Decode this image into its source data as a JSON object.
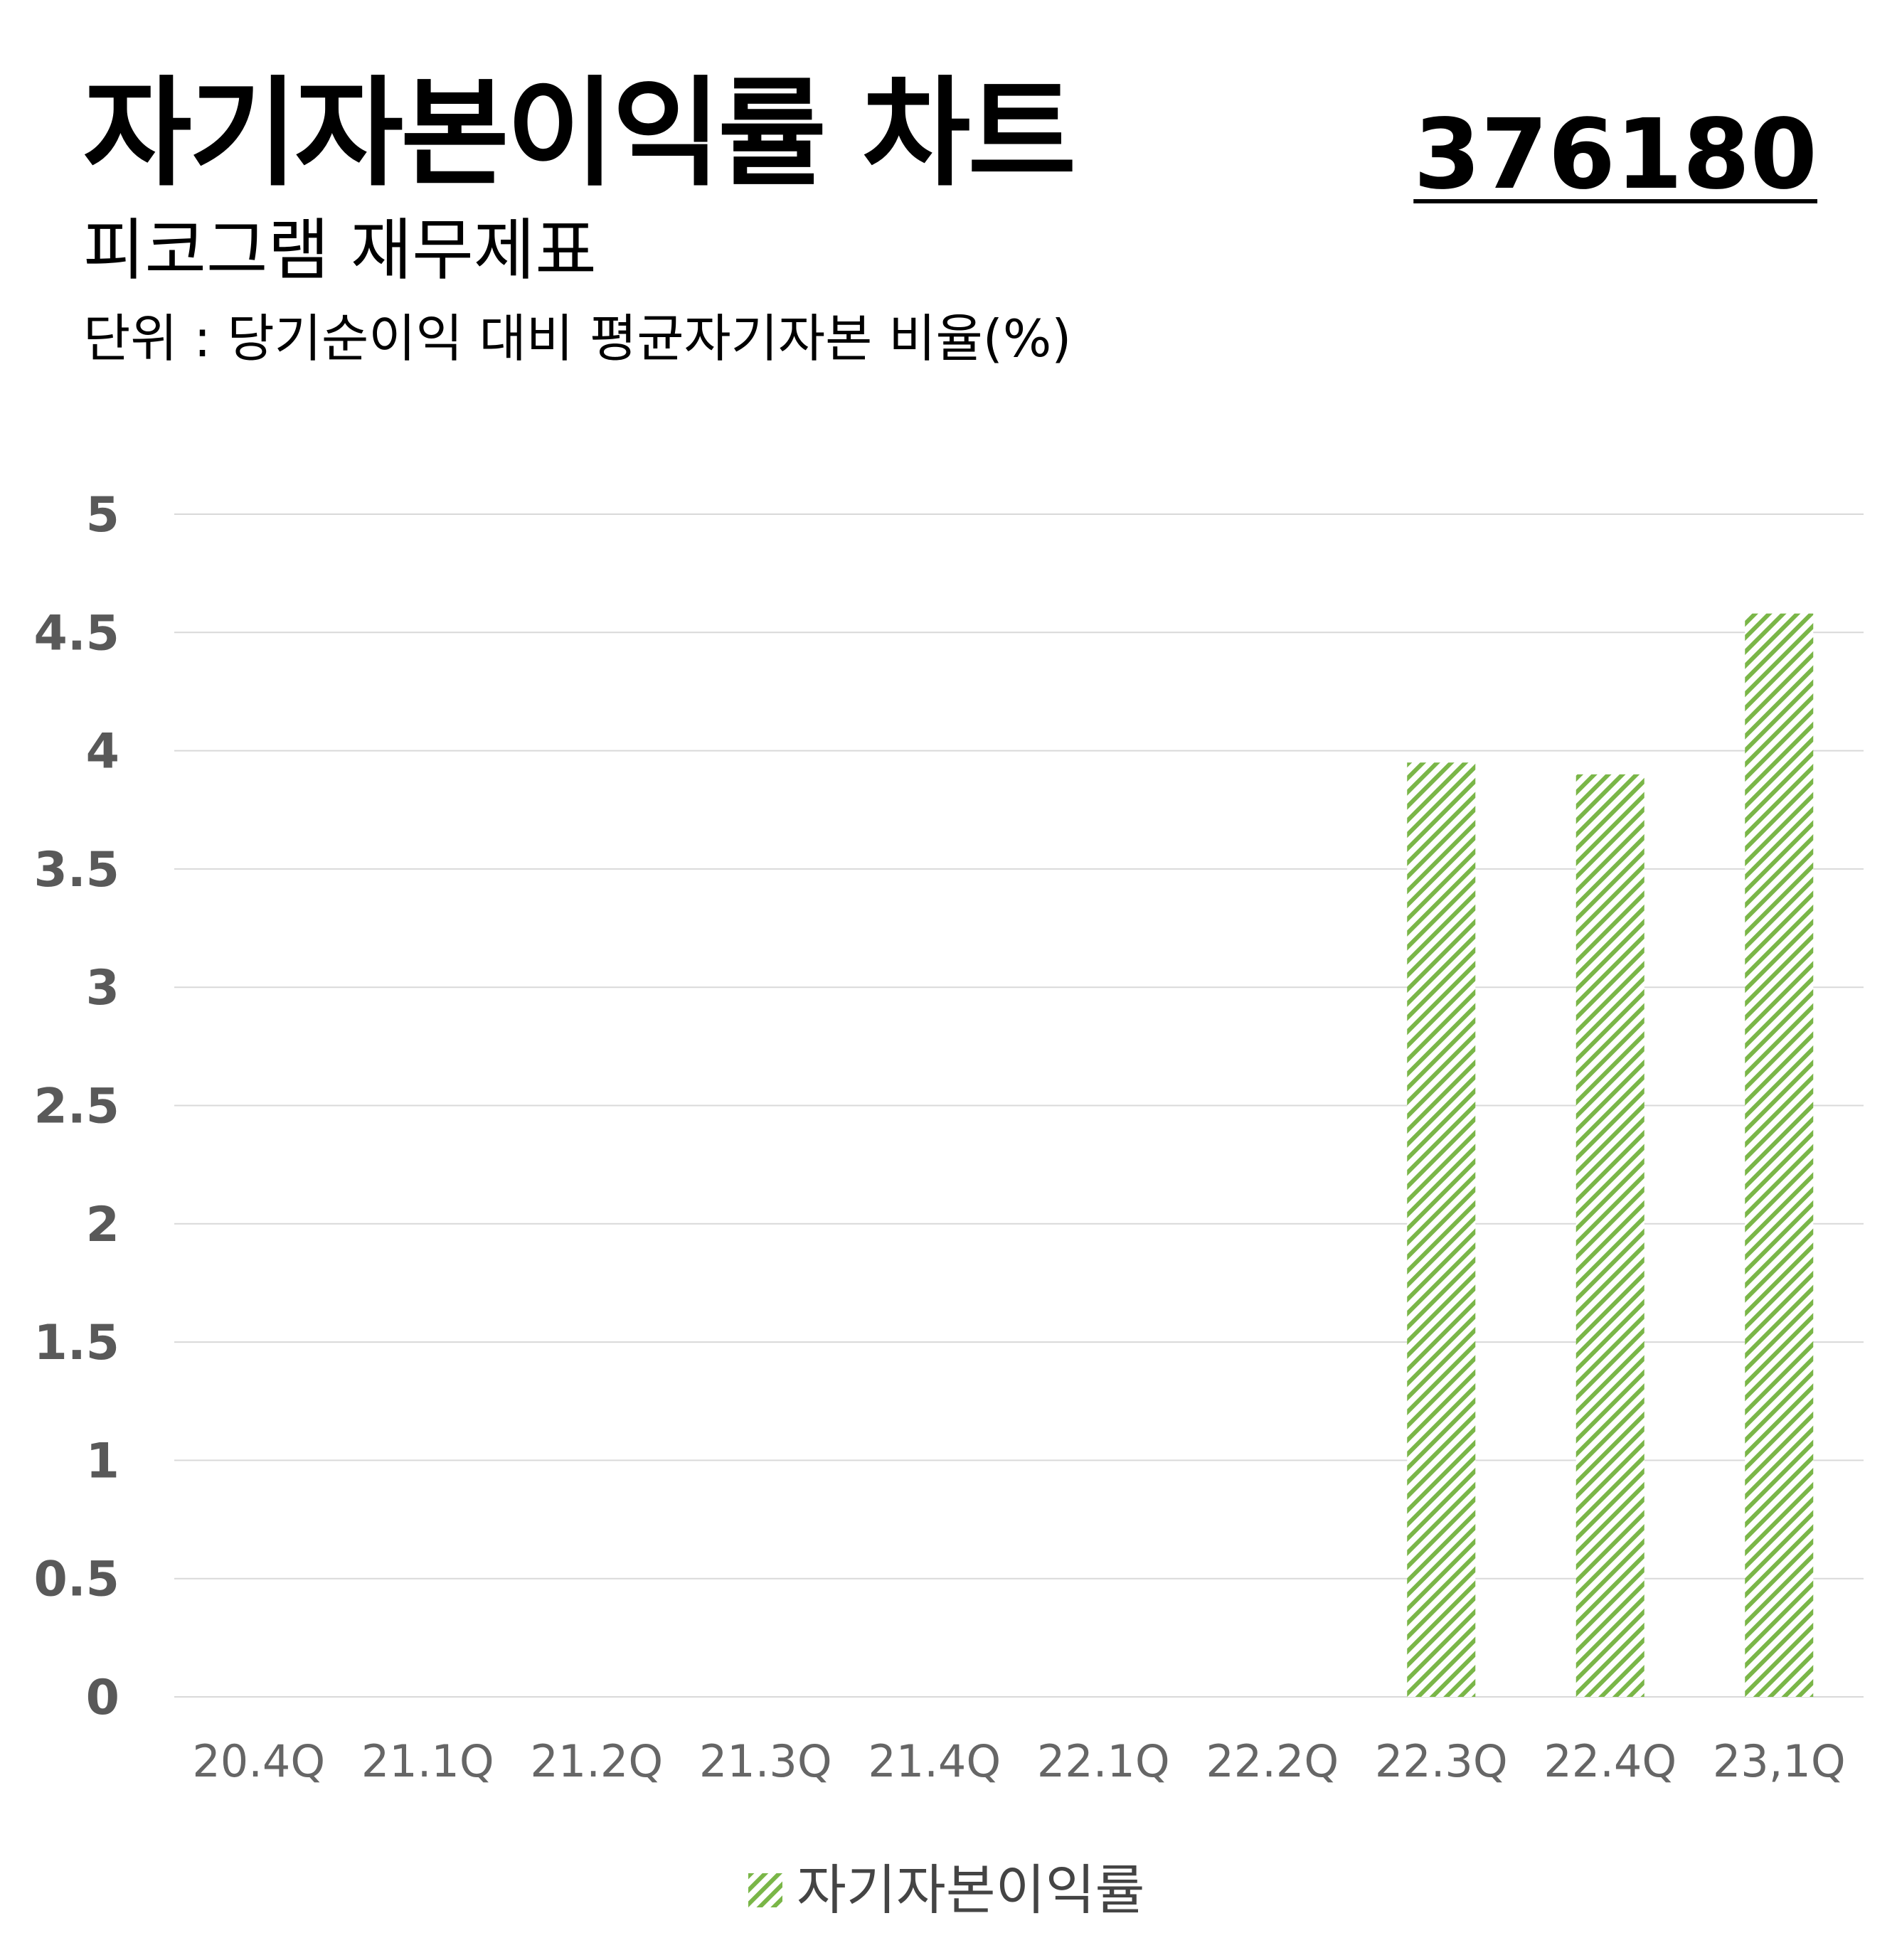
{
  "header": {
    "title": "자기자본이익률 차트",
    "code": "376180",
    "subtitle": "피코그램 재무제표",
    "unit": "단위 : 당기순이익 대비 평균자기자본 비율(%)"
  },
  "colors": {
    "bar": "#7ab648",
    "grid": "#d9d9d9",
    "axis_text": "#595959",
    "category_text": "#666666"
  },
  "chart_data": {
    "type": "bar",
    "categories": [
      "20.4Q",
      "21.1Q",
      "21.2Q",
      "21.3Q",
      "21.4Q",
      "22.1Q",
      "22.2Q",
      "22.3Q",
      "22.4Q",
      "23,1Q"
    ],
    "series": [
      {
        "name": "자기자본이익률",
        "values": [
          null,
          null,
          null,
          null,
          null,
          null,
          null,
          3.95,
          3.9,
          4.58
        ],
        "pattern": "diagonal-hatch"
      }
    ],
    "yticks": [
      "0",
      "0.5",
      "1",
      "1.5",
      "2",
      "2.5",
      "3",
      "3.5",
      "4",
      "4.5",
      "5"
    ],
    "ylim": [
      0,
      5
    ],
    "grid": true,
    "legend": "bottom-center"
  }
}
